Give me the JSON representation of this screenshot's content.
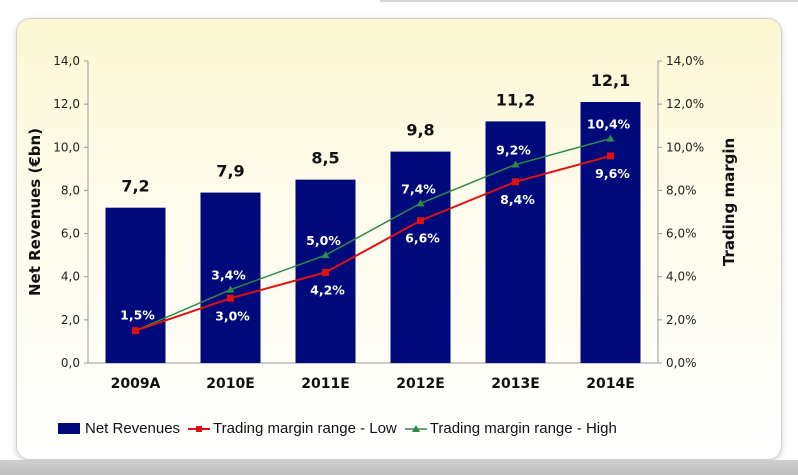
{
  "colors": {
    "bars": "#000a7a",
    "low": "#e01010",
    "high": "#2e8b4a"
  },
  "chart_data": {
    "type": "bar",
    "categories": [
      "2009A",
      "2010E",
      "2011E",
      "2012E",
      "2013E",
      "2014E"
    ],
    "series": [
      {
        "name": "Net Revenues",
        "type": "bar",
        "axis": "left",
        "values": [
          7.2,
          7.9,
          8.5,
          9.8,
          11.2,
          12.1
        ],
        "labels": [
          "7,2",
          "7,9",
          "8,5",
          "9,8",
          "11,2",
          "12,1"
        ]
      },
      {
        "name": "Trading margin range - Low",
        "type": "line",
        "axis": "right",
        "values": [
          1.5,
          3.0,
          4.2,
          6.6,
          8.4,
          9.6
        ],
        "labels": [
          "1,5%",
          "3,0%",
          "4,2%",
          "6,6%",
          "8,4%",
          "9,6%"
        ]
      },
      {
        "name": "Trading margin range - High",
        "type": "line",
        "axis": "right",
        "values": [
          1.5,
          3.4,
          5.0,
          7.4,
          9.2,
          10.4
        ],
        "labels": [
          "",
          "3,4%",
          "5,0%",
          "7,4%",
          "9,2%",
          "10,4%"
        ]
      }
    ],
    "ylabel": "Net Revenues (€bn)",
    "y2label": "Trading margin",
    "ylim": [
      0,
      14
    ],
    "y2lim": [
      0,
      14
    ],
    "yticks": [
      "0,0",
      "2,0",
      "4,0",
      "6,0",
      "8,0",
      "10,0",
      "12,0",
      "14,0"
    ],
    "y2ticks": [
      "0,0%",
      "2,0%",
      "4,0%",
      "6,0%",
      "8,0%",
      "10,0%",
      "12,0%",
      "14,0%"
    ],
    "legend_position": "bottom",
    "grid": false
  }
}
